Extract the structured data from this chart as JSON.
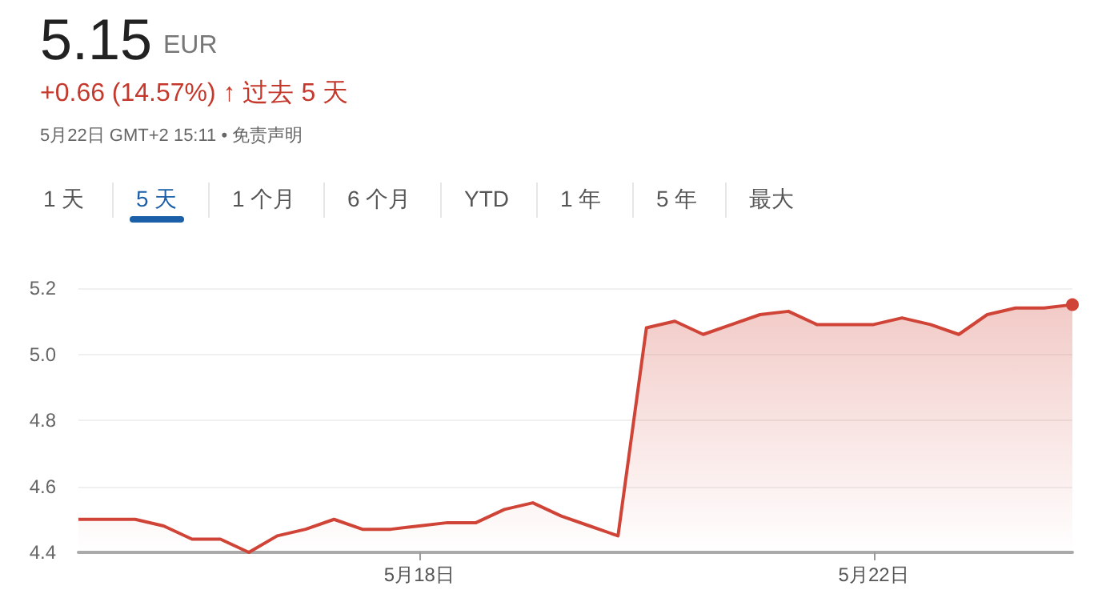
{
  "chart_data": {
    "type": "area",
    "title": "5.15",
    "annotations": [
      "EUR",
      "+0.66 (14.57%) ↑ 过去 5 天",
      "5月22日 GMT+2 15:11 • 免责声明",
      "1 天",
      "5 天",
      "1 个月",
      "6 个月",
      "YTD",
      "1 年",
      "5 年",
      "最大"
    ],
    "categories": [
      null,
      null,
      null,
      null,
      null,
      null,
      null,
      null,
      null,
      null,
      null,
      null,
      "5月18日",
      null,
      null,
      null,
      null,
      null,
      null,
      null,
      null,
      null,
      null,
      null,
      null,
      null,
      null,
      null,
      "5月22日",
      null,
      null,
      null,
      null,
      null,
      null,
      null
    ],
    "series": [
      {
        "color": "#d04437",
        "values": [
          4.5,
          4.5,
          4.5,
          4.48,
          4.44,
          4.44,
          4.4,
          4.45,
          4.47,
          4.5,
          4.47,
          4.47,
          4.48,
          4.49,
          4.49,
          4.53,
          4.55,
          4.51,
          4.48,
          4.45,
          5.08,
          5.1,
          5.06,
          5.09,
          5.12,
          5.13,
          5.09,
          5.09,
          5.09,
          5.11,
          5.09,
          5.06,
          5.12,
          5.14,
          5.14,
          5.15
        ]
      }
    ],
    "ylim": [
      4.4,
      5.2
    ],
    "yticks": [
      4.4,
      4.6,
      4.8,
      {
        "value": 5,
        "label": "5.0"
      },
      5.2
    ],
    "grid": "y",
    "marker": "none"
  }
}
